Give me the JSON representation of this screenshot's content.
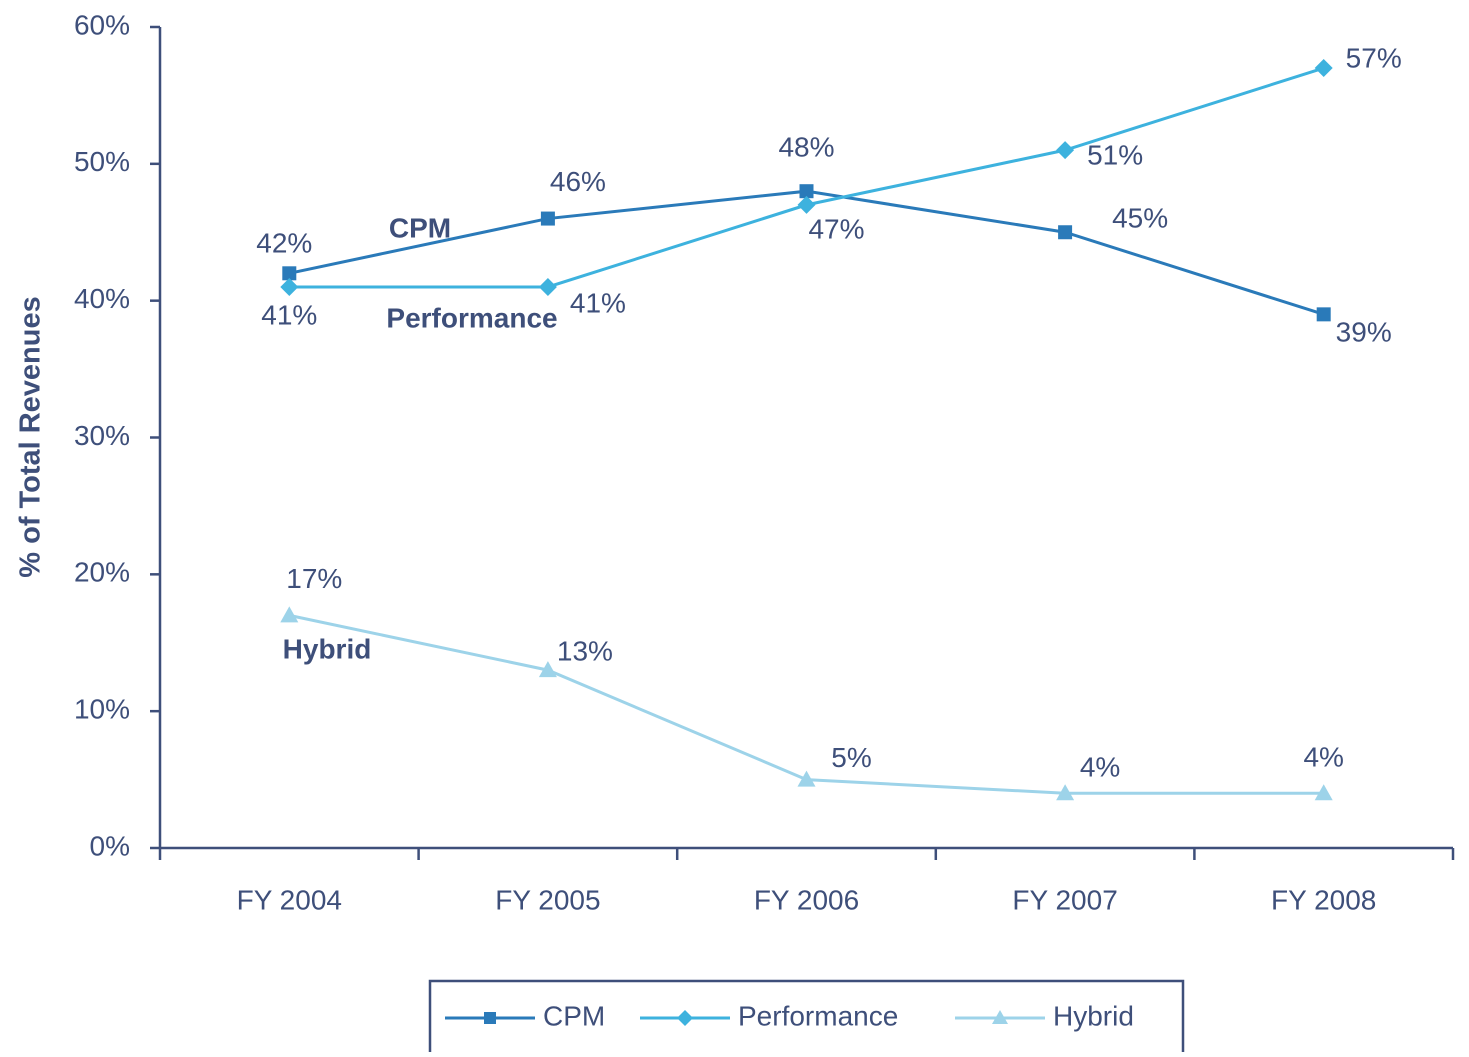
{
  "chart_data": {
    "type": "line",
    "y_label": "% of Total Revenues",
    "categories": [
      "FY 2004",
      "FY 2005",
      "FY 2006",
      "FY 2007",
      "FY 2008"
    ],
    "series": [
      {
        "name": "CPM",
        "color": "#2a7ab9",
        "marker": "square",
        "values": [
          42,
          46,
          48,
          45,
          39
        ],
        "value_labels": [
          "42%",
          "46%",
          "48%",
          "45%",
          "39%"
        ]
      },
      {
        "name": "Performance",
        "color": "#3db2de",
        "marker": "diamond",
        "values": [
          41,
          41,
          47,
          51,
          57
        ],
        "value_labels": [
          "41%",
          "41%",
          "47%",
          "51%",
          "57%"
        ]
      },
      {
        "name": "Hybrid",
        "color": "#9dd3e9",
        "marker": "triangle",
        "values": [
          17,
          13,
          5,
          4,
          4
        ],
        "value_labels": [
          "17%",
          "13%",
          "5%",
          "4%",
          "4%"
        ]
      }
    ],
    "annotations": [
      "CPM",
      "Performance",
      "Hybrid"
    ],
    "ylim": [
      0,
      60
    ],
    "yticks": [
      {
        "value": 0,
        "label": "0%"
      },
      {
        "value": 10,
        "label": "10%"
      },
      {
        "value": 20,
        "label": "20%"
      },
      {
        "value": 30,
        "label": "30%"
      },
      {
        "value": 40,
        "label": "40%"
      },
      {
        "value": 50,
        "label": "50%"
      },
      {
        "value": 60,
        "label": "60%"
      }
    ],
    "legend": "bottom"
  }
}
